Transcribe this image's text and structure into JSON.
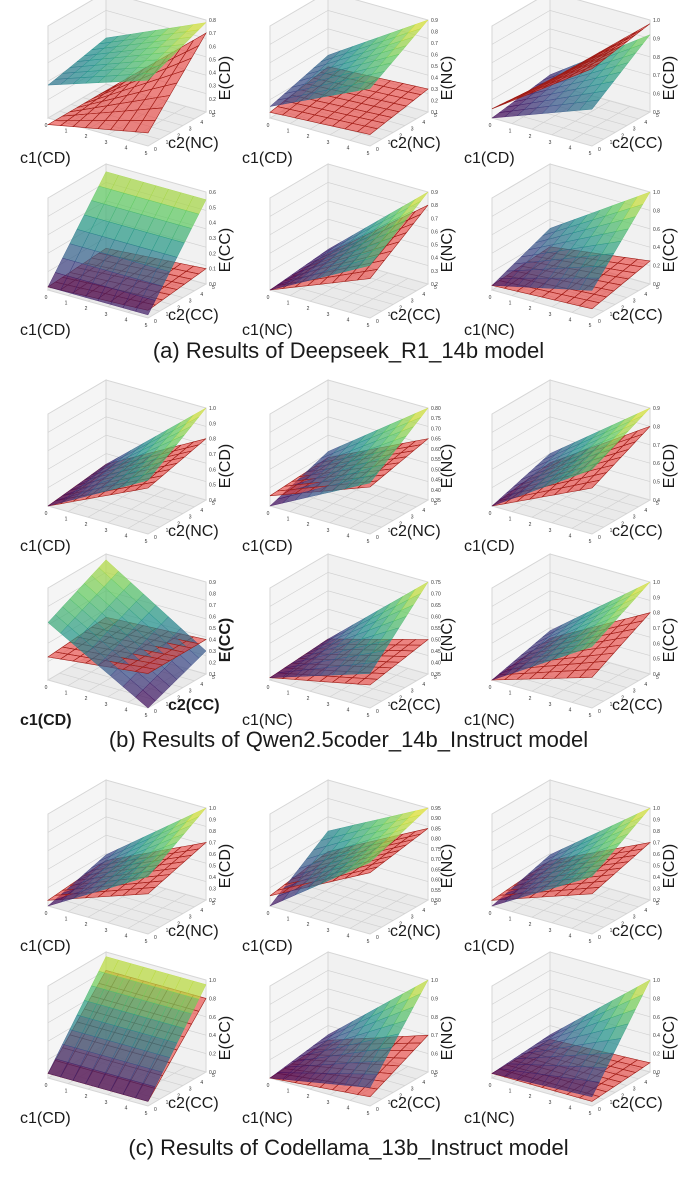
{
  "captions": [
    "(a) Results of Deepseek_R1_14b model",
    "(b) Results of Qwen2.5coder_14b_Instruct model",
    "(c) Results of Codellama_13b_Instruct model"
  ],
  "colors": {
    "surface_colormap": "viridis",
    "plane": "#e8413c",
    "plane_edge": "#9e1c16",
    "pane": "#eaeaea",
    "pane_grid": "#cfcfcf"
  },
  "chart_data": [
    {
      "panel": "a1",
      "type": "surface3d",
      "xlabel": "c1(CD)",
      "ylabel": "c2(NC)",
      "zlabel": "E(CD)",
      "xticks": [
        "0",
        "1",
        "2",
        "3",
        "4",
        "5"
      ],
      "yticks": [
        "0",
        "1",
        "2",
        "3",
        "4",
        "5"
      ],
      "zticks": [
        "0.1",
        "0.2",
        "0.3",
        "0.4",
        "0.5",
        "0.6",
        "0.7",
        "0.8"
      ],
      "zlim": [
        0.1,
        0.8
      ],
      "surface_corners": [
        0.45,
        0.78,
        0.35,
        0.6
      ],
      "plane_corners": [
        0.05,
        0.7,
        0.05,
        0.2
      ]
    },
    {
      "panel": "a2",
      "type": "surface3d",
      "xlabel": "c1(CD)",
      "ylabel": "c2(NC)",
      "zlabel": "E(NC)",
      "xticks": [
        "0",
        "1",
        "2",
        "3",
        "4",
        "5"
      ],
      "yticks": [
        "0",
        "1",
        "2",
        "3",
        "4",
        "5"
      ],
      "zticks": [
        "0.1",
        "0.2",
        "0.3",
        "0.4",
        "0.5",
        "0.6",
        "0.7",
        "0.8",
        "0.9"
      ],
      "zlim": [
        0.1,
        0.9
      ],
      "surface_corners": [
        0.35,
        0.9,
        0.2,
        0.6
      ],
      "plane_corners": [
        0.25,
        0.3,
        0.15,
        0.2
      ]
    },
    {
      "panel": "a3",
      "type": "surface3d",
      "xlabel": "c1(CD)",
      "ylabel": "c2(CC)",
      "zlabel": "E(CD)",
      "xticks": [
        "0",
        "1",
        "2",
        "3",
        "4",
        "5"
      ],
      "yticks": [
        "0",
        "1",
        "2",
        "3",
        "4",
        "5"
      ],
      "zticks": [
        "0.5",
        "0.6",
        "0.7",
        "0.8",
        "0.9",
        "1.0"
      ],
      "zlim": [
        0.5,
        1.0
      ],
      "surface_corners": [
        0.55,
        0.92,
        0.5,
        0.7
      ],
      "plane_corners": [
        0.52,
        0.98,
        0.55,
        0.92
      ]
    },
    {
      "panel": "a4",
      "type": "surface3d",
      "xlabel": "c1(CD)",
      "ylabel": "c2(CC)",
      "zlabel": "E(CC)",
      "xticks": [
        "0",
        "1",
        "2",
        "3",
        "4",
        "5"
      ],
      "yticks": [
        "0",
        "1",
        "2",
        "3",
        "4",
        "5"
      ],
      "zticks": [
        "0.0",
        "0.1",
        "0.2",
        "0.3",
        "0.4",
        "0.5",
        "0.6"
      ],
      "zlim": [
        0.0,
        0.6
      ],
      "surface_corners": [
        0.55,
        0.55,
        0.02,
        0.02
      ],
      "plane_corners": [
        0.05,
        0.1,
        0.02,
        0.05
      ]
    },
    {
      "panel": "a5",
      "type": "surface3d",
      "xlabel": "c1(NC)",
      "ylabel": "c2(CC)",
      "zlabel": "E(NC)",
      "xticks": [
        "0",
        "1",
        "2",
        "3",
        "4",
        "5"
      ],
      "yticks": [
        "0",
        "1",
        "2",
        "3",
        "4",
        "5"
      ],
      "zticks": [
        "0.2",
        "0.3",
        "0.4",
        "0.5",
        "0.6",
        "0.7",
        "0.8",
        "0.9"
      ],
      "zlim": [
        0.2,
        0.9
      ],
      "surface_corners": [
        0.25,
        0.9,
        0.2,
        0.6
      ],
      "plane_corners": [
        0.22,
        0.8,
        0.2,
        0.5
      ]
    },
    {
      "panel": "a6",
      "type": "surface3d",
      "xlabel": "c1(NC)",
      "ylabel": "c2(CC)",
      "zlabel": "E(CC)",
      "xticks": [
        "0",
        "1",
        "2",
        "3",
        "4",
        "5"
      ],
      "yticks": [
        "0",
        "1",
        "2",
        "3",
        "4",
        "5"
      ],
      "zticks": [
        "0.0",
        "0.2",
        "0.4",
        "0.6",
        "0.8",
        "1.0"
      ],
      "zlim": [
        0.0,
        1.0
      ],
      "surface_corners": [
        0.3,
        1.0,
        0.05,
        0.3
      ],
      "plane_corners": [
        0.1,
        0.25,
        0.05,
        0.1
      ]
    },
    {
      "panel": "b1",
      "type": "surface3d",
      "xlabel": "c1(CD)",
      "ylabel": "c2(NC)",
      "zlabel": "E(CD)",
      "xticks": [
        "0",
        "1",
        "2",
        "3",
        "4",
        "5"
      ],
      "yticks": [
        "0",
        "1",
        "2",
        "3",
        "4",
        "5"
      ],
      "zticks": [
        "0.4",
        "0.5",
        "0.6",
        "0.7",
        "0.8",
        "0.9",
        "1.0"
      ],
      "zlim": [
        0.4,
        1.0
      ],
      "surface_corners": [
        0.45,
        1.0,
        0.4,
        0.75
      ],
      "plane_corners": [
        0.45,
        0.8,
        0.4,
        0.7
      ]
    },
    {
      "panel": "b2",
      "type": "surface3d",
      "xlabel": "c1(CD)",
      "ylabel": "c2(NC)",
      "zlabel": "E(NC)",
      "xticks": [
        "0",
        "1",
        "2",
        "3",
        "4",
        "5"
      ],
      "yticks": [
        "0",
        "1",
        "2",
        "3",
        "4",
        "5"
      ],
      "zticks": [
        "0.35",
        "0.40",
        "0.45",
        "0.50",
        "0.55",
        "0.60",
        "0.65",
        "0.70",
        "0.75",
        "0.80"
      ],
      "zlim": [
        0.35,
        0.8
      ],
      "surface_corners": [
        0.45,
        0.8,
        0.35,
        0.6
      ],
      "plane_corners": [
        0.42,
        0.65,
        0.4,
        0.58
      ]
    },
    {
      "panel": "b3",
      "type": "surface3d",
      "xlabel": "c1(CD)",
      "ylabel": "c2(CC)",
      "zlabel": "E(CD)",
      "xticks": [
        "0",
        "1",
        "2",
        "3",
        "4",
        "5"
      ],
      "yticks": [
        "0",
        "1",
        "2",
        "3",
        "4",
        "5"
      ],
      "zticks": [
        "0.4",
        "0.5",
        "0.6",
        "0.7",
        "0.8",
        "0.9"
      ],
      "zlim": [
        0.4,
        0.9
      ],
      "surface_corners": [
        0.5,
        0.9,
        0.4,
        0.75
      ],
      "plane_corners": [
        0.45,
        0.8,
        0.4,
        0.65
      ]
    },
    {
      "panel": "b4",
      "type": "surface3d",
      "xlabel": "c1(CD)",
      "ylabel": "c2(CC)",
      "zlabel": "E(CC)",
      "bold_labels": true,
      "xticks": [
        "0",
        "1",
        "2",
        "3",
        "4",
        "5"
      ],
      "yticks": [
        "0",
        "1",
        "2",
        "3",
        "4",
        "5"
      ],
      "zticks": [
        "0.1",
        "0.2",
        "0.3",
        "0.4",
        "0.5",
        "0.6",
        "0.7",
        "0.8",
        "0.9"
      ],
      "zlim": [
        0.1,
        0.9
      ],
      "surface_corners": [
        0.85,
        0.3,
        0.6,
        0.1
      ],
      "plane_corners": [
        0.35,
        0.4,
        0.3,
        0.4
      ]
    },
    {
      "panel": "b5",
      "type": "surface3d",
      "xlabel": "c1(NC)",
      "ylabel": "c2(CC)",
      "zlabel": "E(NC)",
      "xticks": [
        "0",
        "1",
        "2",
        "3",
        "4",
        "5"
      ],
      "yticks": [
        "0",
        "1",
        "2",
        "3",
        "4",
        "5"
      ],
      "zticks": [
        "0.35",
        "0.40",
        "0.45",
        "0.50",
        "0.55",
        "0.60",
        "0.65",
        "0.70",
        "0.75"
      ],
      "zlim": [
        0.35,
        0.75
      ],
      "surface_corners": [
        0.38,
        0.75,
        0.36,
        0.5
      ],
      "plane_corners": [
        0.38,
        0.5,
        0.36,
        0.45
      ]
    },
    {
      "panel": "b6",
      "type": "surface3d",
      "xlabel": "c1(NC)",
      "ylabel": "c2(CC)",
      "zlabel": "E(CC)",
      "xticks": [
        "0",
        "1",
        "2",
        "3",
        "4",
        "5"
      ],
      "yticks": [
        "0",
        "1",
        "2",
        "3",
        "4",
        "5"
      ],
      "zticks": [
        "0.4",
        "0.5",
        "0.6",
        "0.7",
        "0.8",
        "0.9",
        "1.0"
      ],
      "zlim": [
        0.4,
        1.0
      ],
      "surface_corners": [
        0.5,
        1.0,
        0.4,
        0.8
      ],
      "plane_corners": [
        0.45,
        0.8,
        0.4,
        0.6
      ]
    },
    {
      "panel": "c1",
      "type": "surface3d",
      "xlabel": "c1(CD)",
      "ylabel": "c2(NC)",
      "zlabel": "E(CD)",
      "xticks": [
        "0",
        "1",
        "2",
        "3",
        "4",
        "5"
      ],
      "yticks": [
        "0",
        "1",
        "2",
        "3",
        "4",
        "5"
      ],
      "zticks": [
        "0.2",
        "0.3",
        "0.4",
        "0.5",
        "0.6",
        "0.7",
        "0.8",
        "0.9",
        "1.0"
      ],
      "zlim": [
        0.2,
        1.0
      ],
      "surface_corners": [
        0.35,
        1.0,
        0.2,
        0.7
      ],
      "plane_corners": [
        0.3,
        0.7,
        0.25,
        0.55
      ]
    },
    {
      "panel": "c2",
      "type": "surface3d",
      "xlabel": "c1(CD)",
      "ylabel": "c2(NC)",
      "zlabel": "E(NC)",
      "xticks": [
        "0",
        "1",
        "2",
        "3",
        "4",
        "5"
      ],
      "yticks": [
        "0",
        "1",
        "2",
        "3",
        "4",
        "5"
      ],
      "zticks": [
        "0.50",
        "0.55",
        "0.60",
        "0.65",
        "0.70",
        "0.75",
        "0.80",
        "0.85",
        "0.90",
        "0.95"
      ],
      "zlim": [
        0.5,
        0.95
      ],
      "surface_corners": [
        0.7,
        0.95,
        0.5,
        0.85
      ],
      "plane_corners": [
        0.6,
        0.85,
        0.55,
        0.8
      ]
    },
    {
      "panel": "c3",
      "type": "surface3d",
      "xlabel": "c1(CD)",
      "ylabel": "c2(CC)",
      "zlabel": "E(CD)",
      "xticks": [
        "0",
        "1",
        "2",
        "3",
        "4",
        "5"
      ],
      "yticks": [
        "0",
        "1",
        "2",
        "3",
        "4",
        "5"
      ],
      "zticks": [
        "0.2",
        "0.3",
        "0.4",
        "0.5",
        "0.6",
        "0.7",
        "0.8",
        "0.9",
        "1.0"
      ],
      "zlim": [
        0.2,
        1.0
      ],
      "surface_corners": [
        0.35,
        1.0,
        0.2,
        0.7
      ],
      "plane_corners": [
        0.3,
        0.7,
        0.25,
        0.55
      ]
    },
    {
      "panel": "c4",
      "type": "surface3d",
      "xlabel": "c1(CD)",
      "ylabel": "c2(CC)",
      "zlabel": "E(CC)",
      "xticks": [
        "0",
        "1",
        "2",
        "3",
        "4",
        "5"
      ],
      "yticks": [
        "0",
        "1",
        "2",
        "3",
        "4",
        "5"
      ],
      "zticks": [
        "0.0",
        "0.2",
        "0.4",
        "0.6",
        "0.8",
        "1.0"
      ],
      "zlim": [
        0.0,
        1.0
      ],
      "surface_corners": [
        0.95,
        0.95,
        0.05,
        0.05
      ],
      "plane_corners": [
        0.8,
        0.8,
        0.05,
        0.05
      ]
    },
    {
      "panel": "c5",
      "type": "surface3d",
      "xlabel": "c1(NC)",
      "ylabel": "c2(CC)",
      "zlabel": "E(NC)",
      "xticks": [
        "0",
        "1",
        "2",
        "3",
        "4",
        "5"
      ],
      "yticks": [
        "0",
        "1",
        "2",
        "3",
        "4",
        "5"
      ],
      "zticks": [
        "0.5",
        "0.6",
        "0.7",
        "0.8",
        "0.9",
        "1.0"
      ],
      "zlim": [
        0.5,
        1.0
      ],
      "surface_corners": [
        0.55,
        1.0,
        0.5,
        0.6
      ],
      "plane_corners": [
        0.52,
        0.7,
        0.5,
        0.55
      ]
    },
    {
      "panel": "c6",
      "type": "surface3d",
      "xlabel": "c1(NC)",
      "ylabel": "c2(CC)",
      "zlabel": "E(CC)",
      "xticks": [
        "0",
        "1",
        "2",
        "3",
        "4",
        "5"
      ],
      "yticks": [
        "0",
        "1",
        "2",
        "3",
        "4",
        "5"
      ],
      "zticks": [
        "0.0",
        "0.2",
        "0.4",
        "0.6",
        "0.8",
        "1.0"
      ],
      "zlim": [
        0.0,
        1.0
      ],
      "surface_corners": [
        0.1,
        1.0,
        0.05,
        0.1
      ],
      "plane_corners": [
        0.05,
        0.1,
        0.05,
        0.05
      ]
    }
  ]
}
